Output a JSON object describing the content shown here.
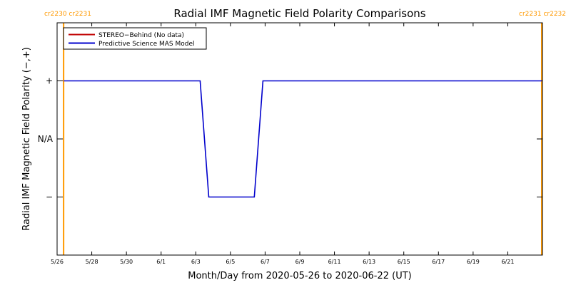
{
  "chart_data": {
    "type": "line",
    "title": "Radial IMF Magnetic Field Polarity Comparisons",
    "xlabel": "Month/Day from 2020-05-26 to 2020-06-22 (UT)",
    "ylabel": "Radial IMF Magnetic Field Polarity (−,+)",
    "x_start": "2020-05-26",
    "xlim": [
      "2020-05-26",
      "2020-06-23"
    ],
    "x_ticks": [
      {
        "date": "2020-05-26",
        "label": "5/26"
      },
      {
        "date": "2020-05-28",
        "label": "5/28"
      },
      {
        "date": "2020-05-30",
        "label": "5/30"
      },
      {
        "date": "2020-06-01",
        "label": "6/1"
      },
      {
        "date": "2020-06-03",
        "label": "6/3"
      },
      {
        "date": "2020-06-05",
        "label": "6/5"
      },
      {
        "date": "2020-06-07",
        "label": "6/7"
      },
      {
        "date": "2020-06-09",
        "label": "6/9"
      },
      {
        "date": "2020-06-11",
        "label": "6/11"
      },
      {
        "date": "2020-06-13",
        "label": "6/13"
      },
      {
        "date": "2020-06-15",
        "label": "6/15"
      },
      {
        "date": "2020-06-17",
        "label": "6/17"
      },
      {
        "date": "2020-06-19",
        "label": "6/19"
      },
      {
        "date": "2020-06-21",
        "label": "6/21"
      }
    ],
    "ylim": [
      -2,
      2
    ],
    "y_ticks": [
      {
        "value": 1,
        "label": "+"
      },
      {
        "value": 0,
        "label": "N/A"
      },
      {
        "value": -1,
        "label": "−"
      }
    ],
    "legend_position": "top-left",
    "series": [
      {
        "name": "STEREO−Behind (No data)",
        "color": "#c00000",
        "points": []
      },
      {
        "name": "Predictive Science MAS Model",
        "color": "#0000cc",
        "points": [
          {
            "x": "2020-05-26 09:00",
            "y": 1
          },
          {
            "x": "2020-06-03 06:00",
            "y": 1
          },
          {
            "x": "2020-06-03 18:00",
            "y": -1
          },
          {
            "x": "2020-06-06 09:00",
            "y": -1
          },
          {
            "x": "2020-06-06 21:00",
            "y": 1
          },
          {
            "x": "2020-06-22 23:00",
            "y": 1
          }
        ]
      }
    ],
    "carrington_markers": [
      {
        "x": "2020-05-26 09:00",
        "label": "cr2230 cr2231",
        "side": "left"
      },
      {
        "x": "2020-06-22 23:00",
        "label": "cr2231 cr2232",
        "side": "right"
      }
    ],
    "marker_color": "#ff9900"
  }
}
